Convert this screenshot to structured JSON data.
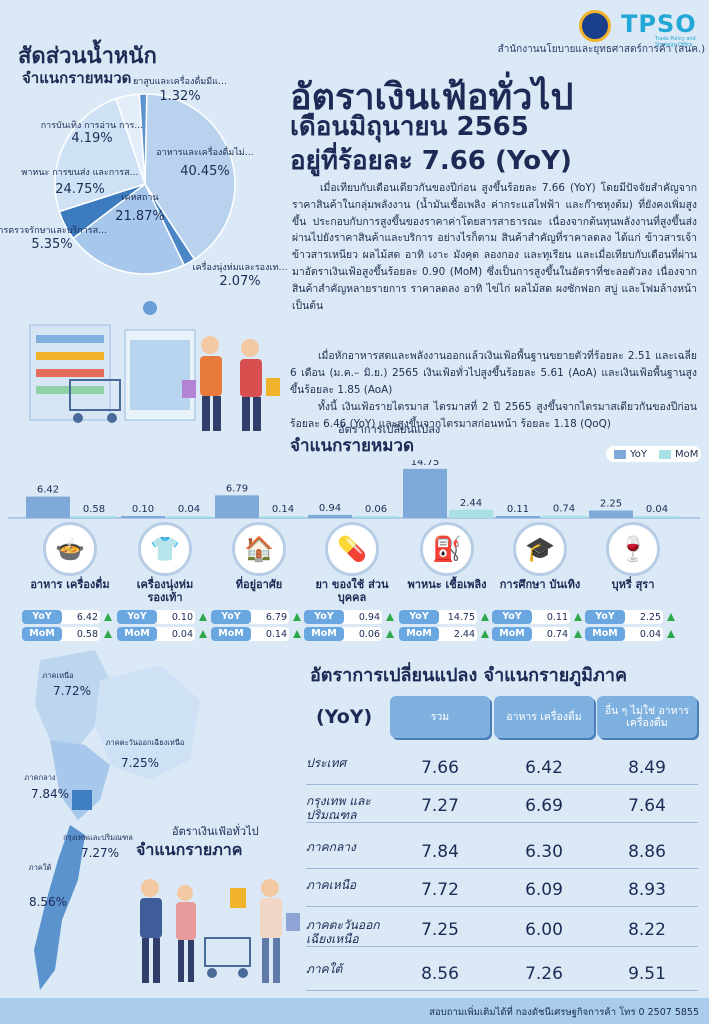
{
  "header": {
    "logo_text": "TPSO",
    "logo_sub": "Trade Policy and Strategy Office",
    "office": "สำนักงานนโยบายและยุทธศาสตร์การค้า (สนค.)"
  },
  "pie": {
    "title": "สัดส่วนน้ำหนัก",
    "subtitle": "จำแนกรายหมวด"
  },
  "headline": {
    "line1": "อัตราเงินเฟ้อทั่วไป",
    "line2": "เดือนมิถุนายน 2565",
    "line3": "อยู่ที่ร้อยละ 7.66 (YoY)"
  },
  "paragraphs": {
    "p1": "เมื่อเทียบกับเดือนเดียวกันของปีก่อน สูงขึ้นร้อยละ 7.66 (YoY) โดยมีปัจจัยสำคัญจากราคาสินค้าในกลุ่มพลังงาน (น้ำมันเชื้อเพลิง ค่ากระแสไฟฟ้า และก๊าซหุงต้ม) ที่ยังคงเพิ่มสูงขึ้น ประกอบกับการสูงขึ้นของราคาค่าโดยสารสาธารณะ เนื่องจากต้นทุนพลังงานที่สูงขึ้นส่งผ่านไปยังราคาสินค้าและบริการ อย่างไรก็ตาม สินค้าสำคัญที่ราคาลดลง ได้แก่ ข้าวสารเจ้า ข้าวสารเหนียว ผลไม้สด อาทิ เงาะ มังคุด ลองกอง และทุเรียน และเมื่อเทียบกับเดือนที่ผ่านมาอัตราเงินเฟ้อสูงขึ้นร้อยละ 0.90 (MoM) ซึ่งเป็นการสูงขึ้นในอัตราที่ชะลอตัวลง เนื่องจากสินค้าสำคัญหลายรายการ ราคาลดลง อาทิ ไข่ไก่ ผลไม้สด ผงซักฟอก สบู่ และโฟมล้างหน้า เป็นต้น",
    "p2": "เมื่อหักอาหารสดและพลังงานออกแล้วเงินเฟ้อพื้นฐานขยายตัวที่ร้อยละ 2.51 และเฉลี่ย 6 เดือน (ม.ค.– มิ.ย.) 2565 เงินเฟ้อทั่วไปสูงขึ้นร้อยละ 5.61 (AoA) และเงินเฟ้อพื้นฐานสูงขึ้นร้อยละ 1.85 (AoA)",
    "p3": "ทั้งนี้ เงินเฟ้อรายไตรมาส ไตรมาสที่ 2 ปี 2565 สูงขึ้นจากไตรมาสเดียวกันของปีก่อนร้อยละ 6.46 (YoY) และสูงขึ้นจากไตรมาสก่อนหน้า ร้อยละ 1.18 (QoQ)"
  },
  "bar_section": {
    "title1": "อัตราการเปลี่ยนแปลง",
    "title2": "จำแนกรายหมวด",
    "legend_yoy": "YoY",
    "legend_mom": "MoM",
    "row_yoy": "YoY",
    "row_mom": "MoM",
    "colors": {
      "yoy": "#7ea9d8",
      "mom": "#a9e0e6",
      "up": "#2da84a"
    }
  },
  "region": {
    "title": "อัตราการเปลี่ยนแปลง จำแนกรายภูมิภาค",
    "yoy_label": "(YoY)",
    "col1": "รวม",
    "col2": "อาหาร เครื่องดื่ม",
    "col3": "อื่น ๆ ไม่ใช่ อาหาร เครื่องดื่ม",
    "map_caption1": "อัตราเงินเฟ้อทั่วไป",
    "map_caption2": "จำแนกรายภาค",
    "rows": [
      {
        "name": "ประเทศ",
        "total": "7.66",
        "food": "6.42",
        "nonfood": "8.49"
      },
      {
        "name": "กรุงเทพ และปริมณฑล",
        "total": "7.27",
        "food": "6.69",
        "nonfood": "7.64"
      },
      {
        "name": "ภาคกลาง",
        "total": "7.84",
        "food": "6.30",
        "nonfood": "8.86"
      },
      {
        "name": "ภาคเหนือ",
        "total": "7.72",
        "food": "6.09",
        "nonfood": "8.93"
      },
      {
        "name": "ภาคตะวันออก เฉียงเหนือ",
        "total": "7.25",
        "food": "6.00",
        "nonfood": "8.22"
      },
      {
        "name": "ภาคใต้",
        "total": "8.56",
        "food": "7.26",
        "nonfood": "9.51"
      }
    ],
    "map_labels": [
      {
        "name": "ภาคเหนือ",
        "value": "7.72%"
      },
      {
        "name": "ภาคตะวันออกเฉียงเหนือ",
        "value": "7.25%"
      },
      {
        "name": "ภาคกลาง",
        "value": "7.84%"
      },
      {
        "name": "กรุงเทพและปริมณฑล",
        "value": "7.27%"
      },
      {
        "name": "ภาคใต้",
        "value": "8.56%"
      }
    ]
  },
  "footer": {
    "text": "สอบถามเพิ่มเติมได้ที่ กองดัชนีเศรษฐกิจการค้า  โทร 0 2507 5855"
  },
  "chart_data": [
    {
      "type": "pie",
      "title": "สัดส่วนน้ำหนัก",
      "subtitle": "จำแนกรายหมวด",
      "slices": [
        {
          "label": "อาหารและเครื่องดื่มไม่มีแอลกอฮอล์",
          "value": 40.45,
          "display": "40.45%",
          "color": "#b9d3ee"
        },
        {
          "label": "เครื่องนุ่งห่มและรองเท้า",
          "value": 2.07,
          "display": "2.07%",
          "color": "#4a86c5"
        },
        {
          "label": "เคหสถาน",
          "value": 21.87,
          "display": "21.87%",
          "color": "#a7c8ea"
        },
        {
          "label": "การตรวจรักษาและบริการส่วนบุคคล",
          "value": 5.35,
          "display": "5.35%",
          "color": "#3c7bc0"
        },
        {
          "label": "พาหนะ การขนส่ง และการสื่อสาร (น้ำมันเชื้อเพลิง ฯลฯ)",
          "value": 24.75,
          "display": "24.75%",
          "color": "#cfe2f5"
        },
        {
          "label": "การบันเทิง การอ่าน การศึกษาฯ",
          "value": 4.19,
          "display": "4.19%",
          "color": "#e3eefa"
        },
        {
          "label": "ยาสูบและเครื่องดื่มมีแอลกอฮอล์",
          "value": 1.32,
          "display": "1.32%",
          "color": "#5b93cf"
        }
      ]
    },
    {
      "type": "bar",
      "title": "อัตราการเปลี่ยนแปลง จำแนกรายหมวด",
      "categories": [
        "อาหาร เครื่องดื่ม",
        "เครื่องนุ่งห่ม รองเท้า",
        "ที่อยู่อาศัย",
        "ยา ของใช้ ส่วนบุคคล",
        "พาหนะ เชื้อเพลิง",
        "การศึกษา บันเทิง",
        "บุหรี่ สุรา"
      ],
      "icons": [
        "food-icon",
        "clothing-icon",
        "house-icon",
        "pills-icon",
        "fuel-icon",
        "education-icon",
        "liquor-icon"
      ],
      "series": [
        {
          "name": "YoY",
          "values": [
            6.42,
            0.1,
            6.79,
            0.94,
            14.75,
            0.11,
            2.25
          ]
        },
        {
          "name": "MoM",
          "values": [
            0.58,
            0.04,
            0.14,
            0.06,
            2.44,
            0.74,
            0.04
          ]
        }
      ],
      "labels_yoy": [
        "6.42",
        "0.10",
        "6.79",
        "0.94",
        "14.75",
        "0.11",
        "2.25"
      ],
      "labels_mom": [
        "0.58",
        "0.04",
        "0.14",
        "0.06",
        "2.44",
        "0.74",
        "0.04"
      ],
      "ylim": [
        0,
        15
      ]
    }
  ]
}
